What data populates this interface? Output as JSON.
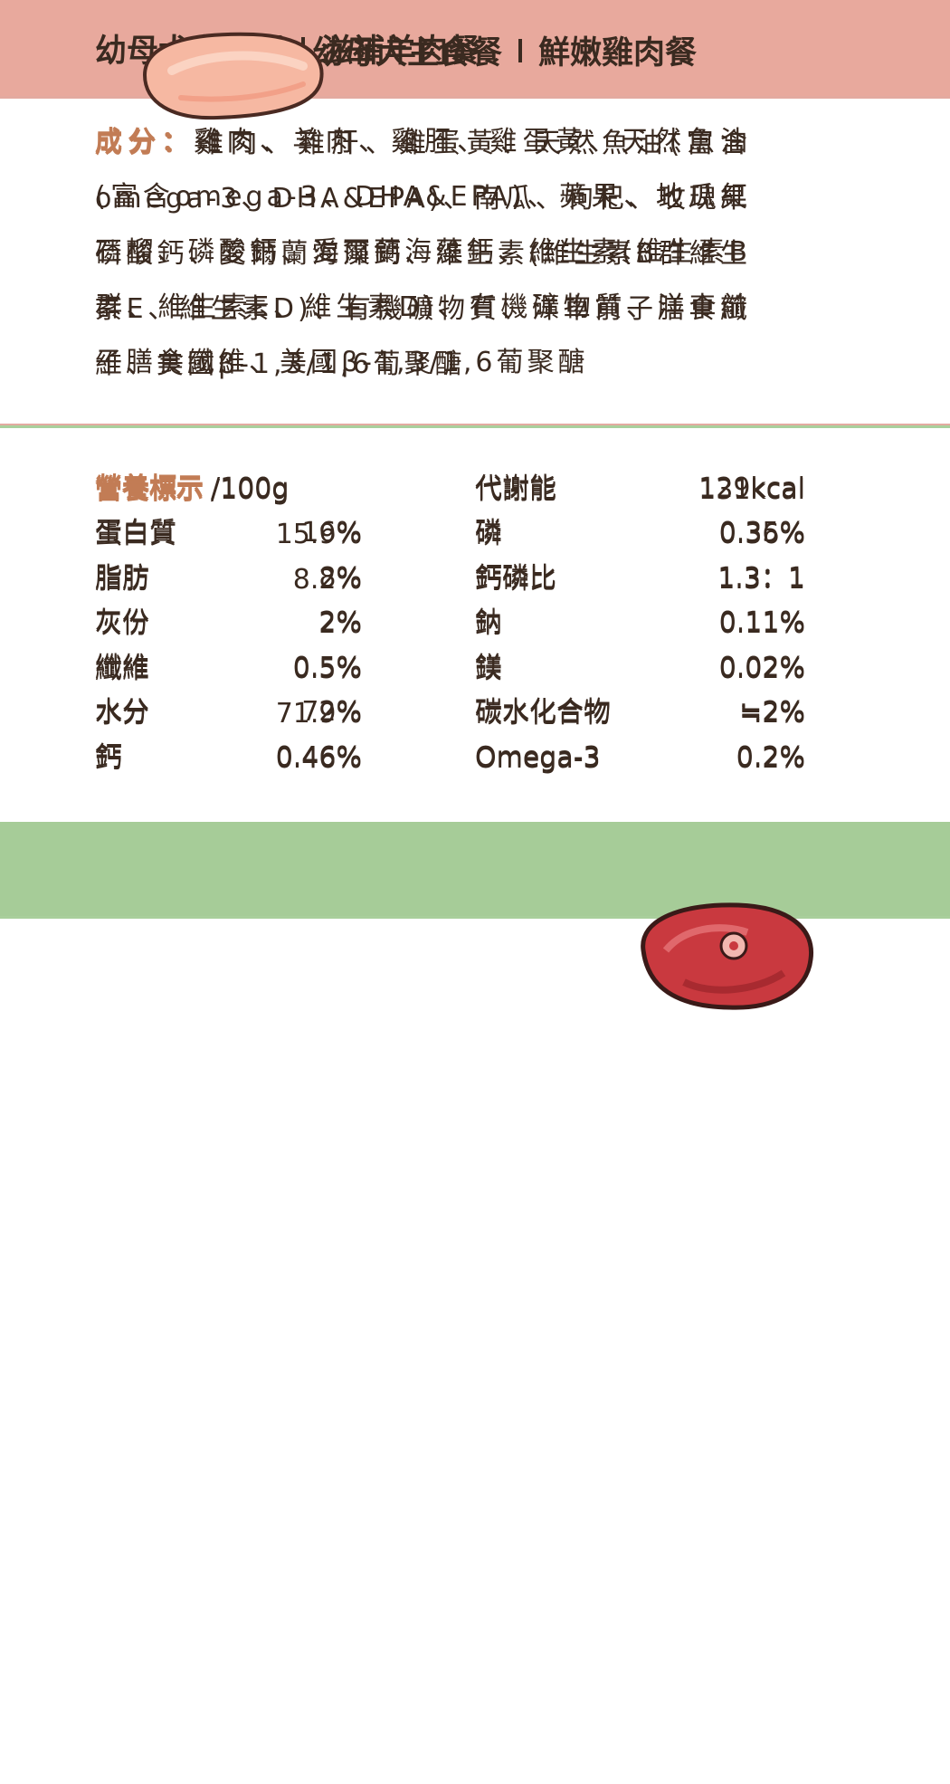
{
  "cards": [
    {
      "title": "幼母犬主食餐",
      "subtitle": "鮮嫩雞肉餐",
      "ingredients_label": "成分：",
      "ingredients": "雞肉、雞肝、雞蛋黃、天然魚油(富含omega-3、DHA&EPA)、南瓜、枸杞、玫瑰果磷酸鈣、愛爾蘭海藻鈣、維生素(維生素B群維生素E、維生素D)、有機礦物質、洋車前子膳食纖維、美國β-1,3/1,6葡聚醣",
      "nutrition_label": "營養標示",
      "nutrition_unit": "/100g",
      "left": [
        [
          "蛋白質",
          "16%"
        ],
        [
          "脂肪",
          "8%"
        ],
        [
          "灰份",
          "2%"
        ],
        [
          "纖維",
          "0.5%"
        ],
        [
          "水分",
          "72%"
        ],
        [
          "鈣",
          "0.46%"
        ]
      ],
      "right": [
        [
          "代謝能",
          "129kcal"
        ],
        [
          "磷",
          "0.35%"
        ],
        [
          "鈣磷比",
          "1.3：1"
        ],
        [
          "鈉",
          "0.11%"
        ],
        [
          "鎂",
          "0.02%"
        ],
        [
          "碳水化合物",
          "≒2%"
        ],
        [
          "Omega-3",
          "0.2%"
        ]
      ]
    },
    {
      "title": "幼母犬主食餐",
      "subtitle": "滋補羊肉餐",
      "ingredients_label": "成分：",
      "ingredients": "雞肉、羊肉、雞肝、雞蛋黃、天然魚油(富含omega-3、DHA&EPA)、蘋果、地瓜紅石榴、磷酸鈣、愛爾蘭海藻鈣、維生素(維生素B群、維生素E、維生素D)、有機礦物質、洋車前子膳食纖維、美國β-1,3/1,6葡聚醣",
      "nutrition_label": "營養標示",
      "nutrition_unit": "/100g",
      "left": [
        [
          "蛋白質",
          "15.9%"
        ],
        [
          "脂肪",
          "8.2%"
        ],
        [
          "灰份",
          "2%"
        ],
        [
          "纖維",
          "0.5%"
        ],
        [
          "水分",
          "71.9%"
        ],
        [
          "鈣",
          "0.46%"
        ]
      ],
      "right": [
        [
          "代謝能",
          "131kcal"
        ],
        [
          "磷",
          "0.36%"
        ],
        [
          "鈣磷比",
          "1.3：1"
        ],
        [
          "鈉",
          "0.11%"
        ],
        [
          "鎂",
          "0.02%"
        ],
        [
          "碳水化合物",
          "≒2%"
        ],
        [
          "Omega-3",
          "0.2%"
        ]
      ]
    }
  ]
}
